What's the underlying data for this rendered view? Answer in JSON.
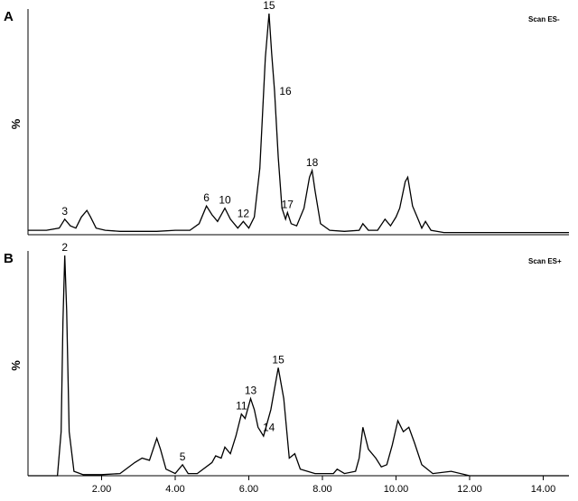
{
  "chart_data": [
    {
      "type": "line",
      "title": "A",
      "annotation": "Scan ES-",
      "ylabel": "%",
      "xlim": [
        0,
        14.7
      ],
      "ylim": [
        0,
        100
      ],
      "series": [
        {
          "color": "#000000",
          "x": [
            0,
            0.5,
            0.85,
            1.0,
            1.15,
            1.3,
            1.45,
            1.6,
            1.7,
            1.85,
            2.1,
            2.5,
            3.0,
            3.5,
            4.0,
            4.4,
            4.65,
            4.85,
            5.0,
            5.15,
            5.35,
            5.5,
            5.7,
            5.85,
            6.0,
            6.15,
            6.3,
            6.45,
            6.55,
            6.62,
            6.7,
            6.8,
            6.9,
            7.0,
            7.05,
            7.15,
            7.3,
            7.5,
            7.65,
            7.72,
            7.8,
            7.95,
            8.2,
            8.6,
            9.0,
            9.1,
            9.25,
            9.5,
            9.7,
            9.85,
            10.0,
            10.1,
            10.25,
            10.32,
            10.45,
            10.6,
            10.7,
            10.8,
            10.95,
            11.3,
            12,
            13,
            14,
            14.7
          ],
          "values": [
            2,
            2,
            3,
            7,
            4,
            3,
            8,
            11,
            8,
            3,
            2,
            1.5,
            1.5,
            1.5,
            2,
            2,
            5,
            13,
            9,
            6,
            12,
            7,
            3,
            6,
            3,
            8,
            30,
            80,
            100,
            82,
            65,
            35,
            12,
            7,
            10,
            5,
            4,
            12,
            26,
            29,
            20,
            5,
            2,
            1.5,
            2,
            5,
            2,
            2,
            7,
            4,
            8,
            12,
            24,
            26,
            13,
            7,
            3,
            6,
            2,
            1,
            1,
            1,
            1,
            1
          ]
        }
      ],
      "peaks": [
        {
          "label": "3",
          "x": 1.0,
          "y": 7
        },
        {
          "label": "6",
          "x": 4.85,
          "y": 13
        },
        {
          "label": "10",
          "x": 5.35,
          "y": 12
        },
        {
          "label": "12",
          "x": 5.85,
          "y": 6
        },
        {
          "label": "15",
          "x": 6.55,
          "y": 100
        },
        {
          "label": "16",
          "x": 6.7,
          "y": 65
        },
        {
          "label": "17",
          "x": 7.05,
          "y": 10
        },
        {
          "label": "18",
          "x": 7.72,
          "y": 29
        }
      ]
    },
    {
      "type": "line",
      "title": "B",
      "annotation": "Scan ES+",
      "ylabel": "%",
      "xlim": [
        0,
        14.7
      ],
      "ylim": [
        0,
        100
      ],
      "xticks": [
        {
          "value": 2,
          "label": "2.00"
        },
        {
          "value": 4,
          "label": "4.00"
        },
        {
          "value": 6,
          "label": "6.00"
        },
        {
          "value": 8,
          "label": "8.00"
        },
        {
          "value": 10,
          "label": "10.00"
        },
        {
          "value": 12,
          "label": "12.00"
        },
        {
          "value": 14,
          "label": "14.00"
        }
      ],
      "series": [
        {
          "color": "#000000",
          "x": [
            0,
            0.8,
            0.9,
            0.95,
            1.0,
            1.05,
            1.12,
            1.25,
            1.5,
            2.0,
            2.5,
            2.9,
            3.1,
            3.3,
            3.5,
            3.6,
            3.75,
            4.0,
            4.2,
            4.35,
            4.6,
            5.0,
            5.1,
            5.25,
            5.35,
            5.5,
            5.65,
            5.8,
            5.9,
            6.05,
            6.15,
            6.25,
            6.4,
            6.6,
            6.8,
            6.95,
            7.1,
            7.25,
            7.4,
            7.8,
            8.3,
            8.4,
            8.6,
            8.9,
            9.0,
            9.1,
            9.25,
            9.45,
            9.6,
            9.75,
            9.9,
            10.05,
            10.2,
            10.35,
            10.5,
            10.7,
            11.0,
            11.5,
            12,
            13,
            14,
            14.7
          ],
          "values": [
            0,
            0,
            20,
            70,
            100,
            75,
            20,
            2,
            0.5,
            0.5,
            1,
            6,
            8,
            7,
            17,
            12,
            3,
            1,
            5,
            1,
            1,
            6,
            9,
            8,
            13,
            10,
            18,
            28,
            26,
            35,
            30,
            22,
            18,
            30,
            49,
            35,
            8,
            10,
            3,
            1,
            1,
            3,
            1,
            2,
            8,
            22,
            12,
            8,
            4,
            5,
            14,
            25,
            20,
            22,
            15,
            5,
            1,
            2,
            0,
            0,
            0,
            0
          ]
        }
      ],
      "peaks": [
        {
          "label": "2",
          "x": 1.0,
          "y": 100
        },
        {
          "label": "5",
          "x": 4.2,
          "y": 5
        },
        {
          "label": "11",
          "x": 5.8,
          "y": 28
        },
        {
          "label": "13",
          "x": 6.05,
          "y": 35
        },
        {
          "label": "14",
          "x": 6.25,
          "y": 22
        },
        {
          "label": "15",
          "x": 6.8,
          "y": 49
        }
      ]
    }
  ]
}
